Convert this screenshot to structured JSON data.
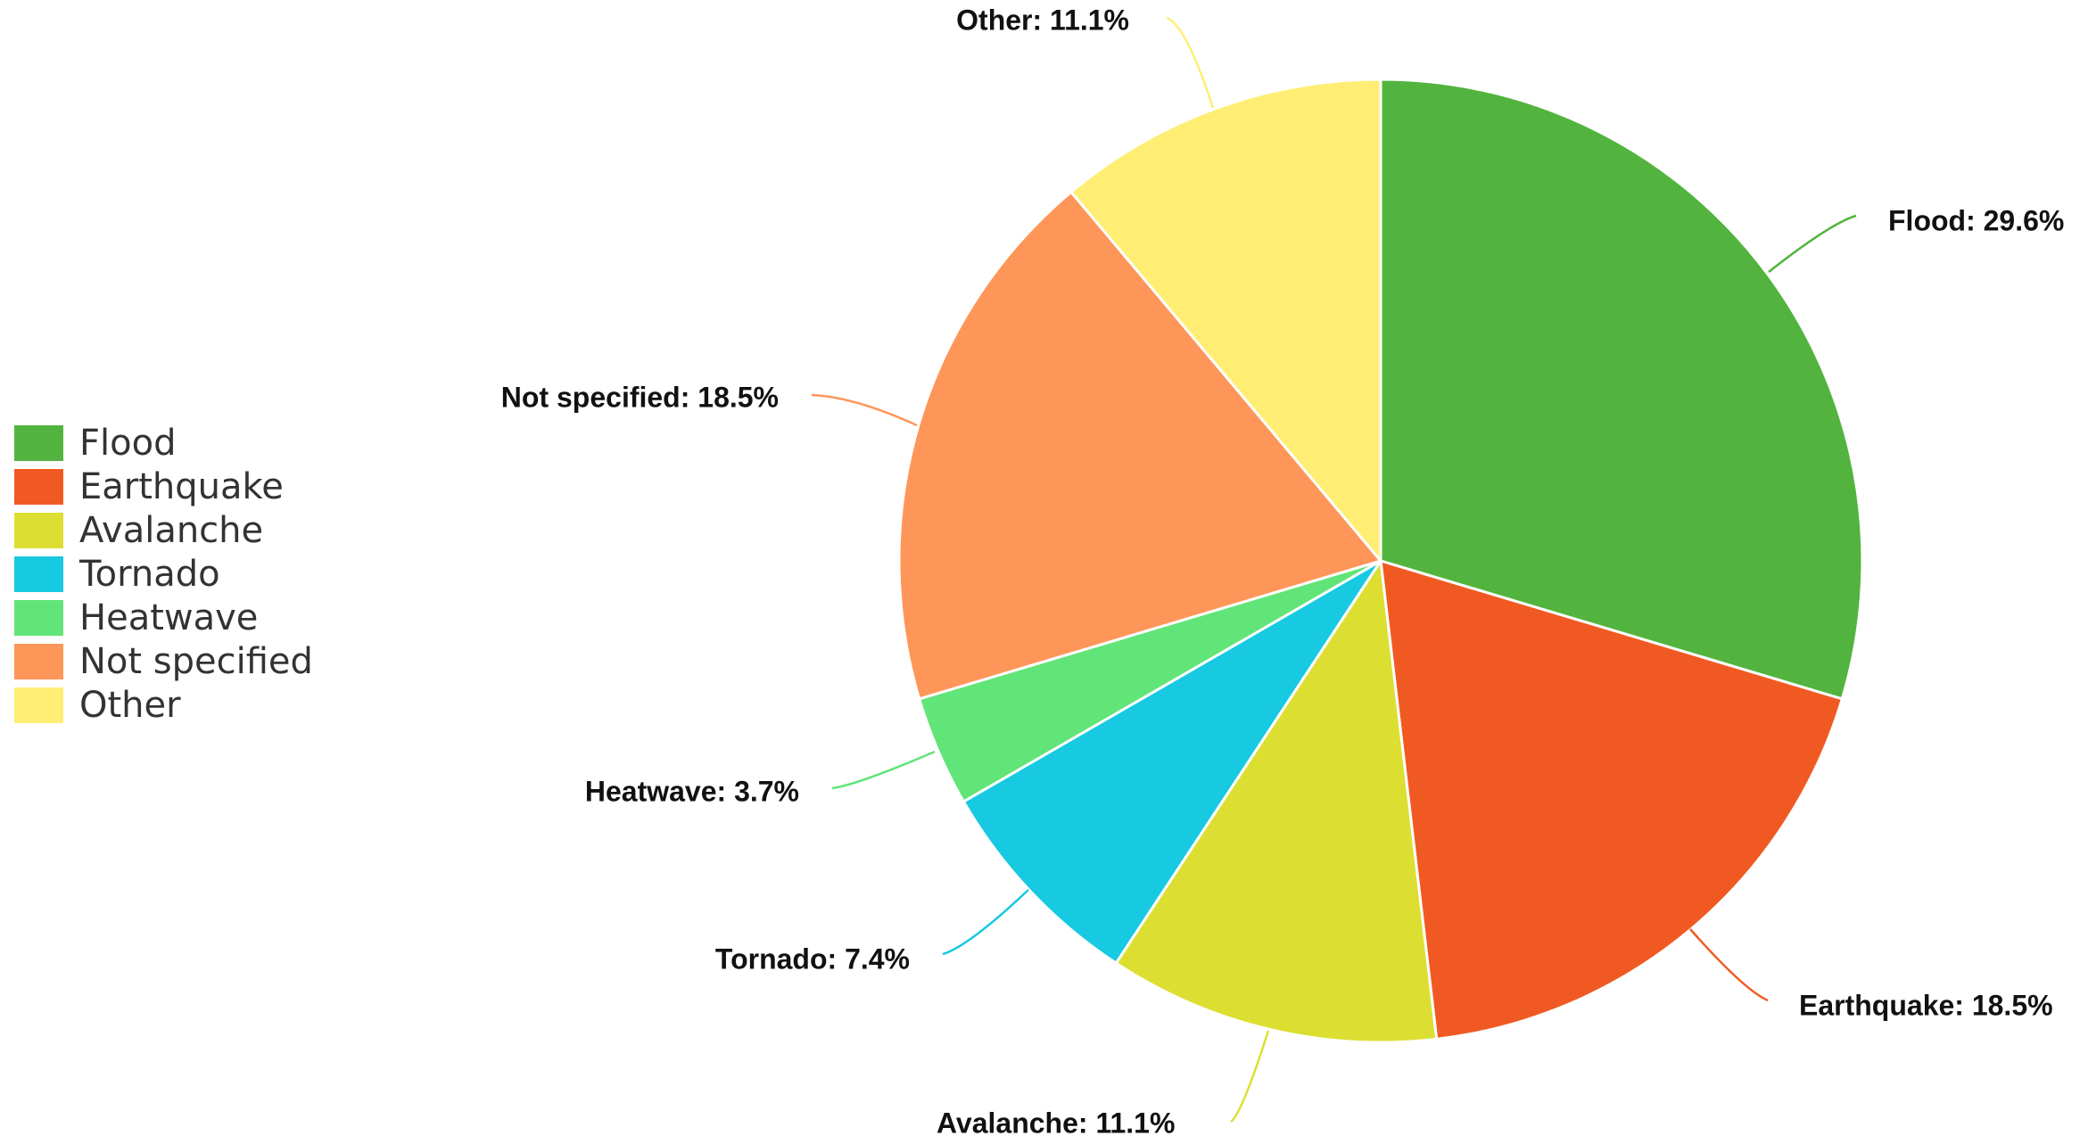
{
  "chart_data": {
    "type": "pie",
    "title": "",
    "categories": [
      "Flood",
      "Earthquake",
      "Avalanche",
      "Tornado",
      "Heatwave",
      "Not specified",
      "Other"
    ],
    "values": [
      29.6,
      18.5,
      11.1,
      7.4,
      3.7,
      18.5,
      11.1
    ],
    "unit": "%",
    "colors": [
      "#52b43e",
      "#f05a22",
      "#dcdf32",
      "#17c9e1",
      "#61e478",
      "#fe9659",
      "#ffee73"
    ],
    "data_labels": [
      "Flood: 29.6%",
      "Earthquake: 18.5%",
      "Avalanche: 11.1%",
      "Tornado: 7.4%",
      "Heatwave: 3.7%",
      "Not specified: 18.5%",
      "Other: 11.1%"
    ],
    "legend": {
      "placement": "left",
      "entries": [
        "Flood",
        "Earthquake",
        "Avalanche",
        "Tornado",
        "Heatwave",
        "Not specified",
        "Other"
      ]
    },
    "start_angle": "12 o'clock",
    "direction": "clockwise"
  }
}
